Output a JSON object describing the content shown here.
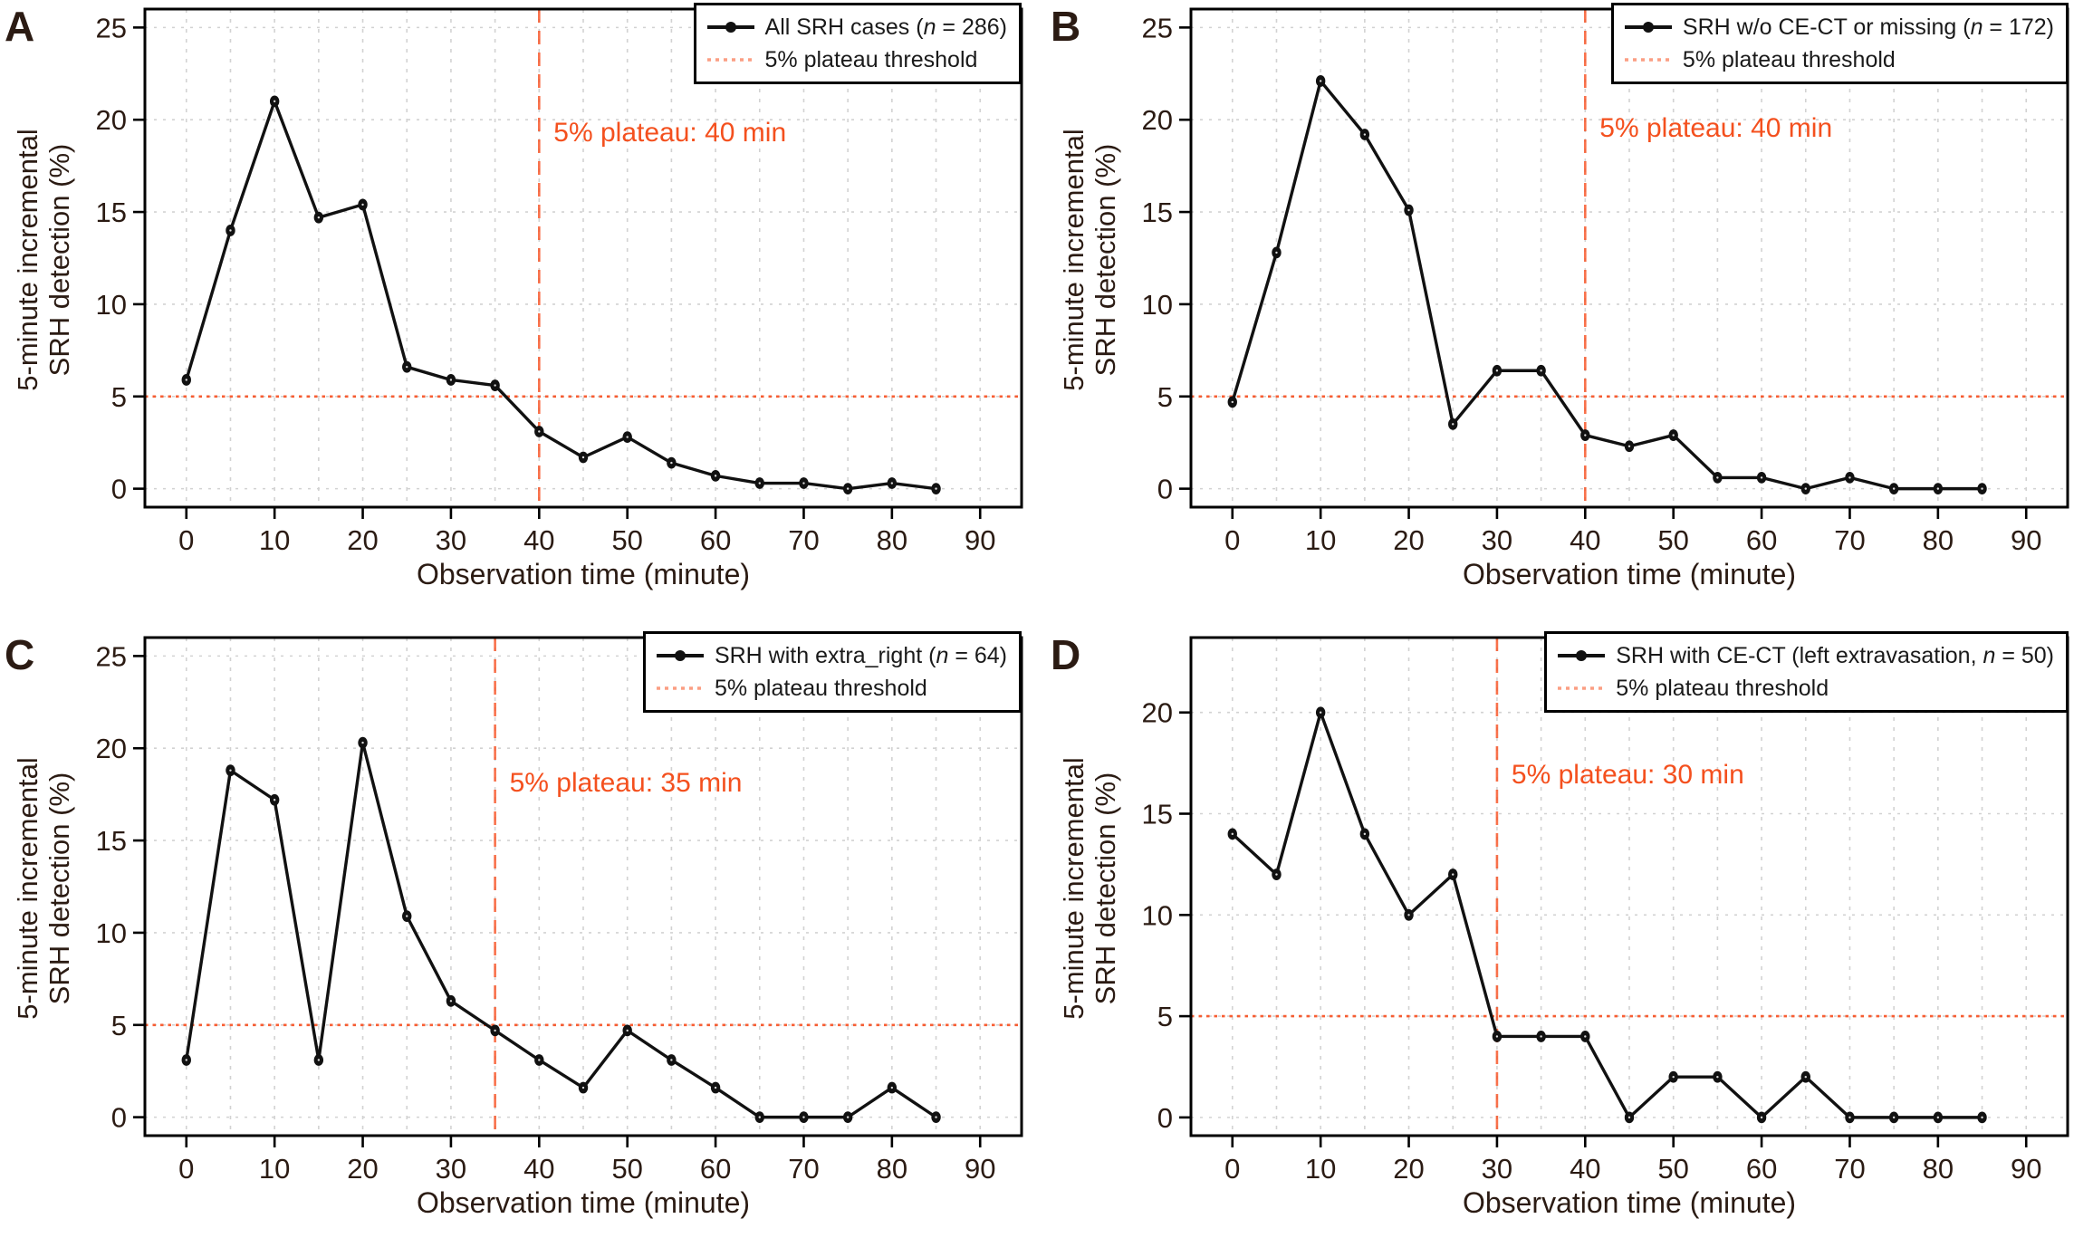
{
  "shared": {
    "ylabel_line1": "5-minute incremental",
    "ylabel_line2": "SRH detection (%)",
    "xlabel": "Observation time (minute)",
    "threshold_label": "5% plateau threshold",
    "colors": {
      "accent_orange": "#F74E1E",
      "annotation_orange": "#F4501E",
      "series_black": "#111111",
      "grid_gray": "#D2D2D2",
      "text_dark": "#2B1B13"
    }
  },
  "chart_data": [
    {
      "type": "line",
      "panel": "A",
      "title": "",
      "xlabel": "Observation time (minute)",
      "ylabel": "5-minute incremental SRH detection (%)",
      "x": [
        0,
        5,
        10,
        15,
        20,
        25,
        30,
        35,
        40,
        45,
        50,
        55,
        60,
        65,
        70,
        75,
        80,
        85
      ],
      "values": [
        5.9,
        14.0,
        21.0,
        14.7,
        15.4,
        6.6,
        5.9,
        5.6,
        3.1,
        1.7,
        2.8,
        1.4,
        0.7,
        0.3,
        0.3,
        0.0,
        0.3,
        0.0
      ],
      "series_label": {
        "pre": "All SRH cases (",
        "n": "n",
        "post": " = 286)"
      },
      "annotation": "5% plateau: 40 min",
      "plateau_min": 40,
      "threshold_pct": 5,
      "annotation_y": 19.2,
      "x_ticks": [
        0,
        10,
        20,
        30,
        40,
        50,
        60,
        70,
        80,
        90
      ],
      "y_ticks": [
        0,
        5,
        10,
        15,
        20,
        25
      ],
      "xlim": [
        -4.7,
        94.7
      ],
      "ylim": [
        -1.0,
        26.0
      ],
      "grid": true,
      "legend_position": "top-right"
    },
    {
      "type": "line",
      "panel": "B",
      "title": "",
      "xlabel": "Observation time (minute)",
      "ylabel": "5-minute incremental SRH detection (%)",
      "x": [
        0,
        5,
        10,
        15,
        20,
        25,
        30,
        35,
        40,
        45,
        50,
        55,
        60,
        65,
        70,
        75,
        80,
        85
      ],
      "values": [
        4.7,
        12.8,
        22.1,
        19.2,
        15.1,
        3.5,
        6.4,
        6.4,
        2.9,
        2.3,
        2.9,
        0.6,
        0.6,
        0.0,
        0.6,
        0.0,
        0.0,
        0.0
      ],
      "series_label": {
        "pre": "SRH w/o CE-CT or missing (",
        "n": "n",
        "post": " = 172)"
      },
      "annotation": "5% plateau: 40 min",
      "plateau_min": 40,
      "threshold_pct": 5,
      "annotation_y": 19.4,
      "x_ticks": [
        0,
        10,
        20,
        30,
        40,
        50,
        60,
        70,
        80,
        90
      ],
      "y_ticks": [
        0,
        5,
        10,
        15,
        20,
        25
      ],
      "xlim": [
        -4.7,
        94.7
      ],
      "ylim": [
        -1.0,
        26.0
      ],
      "grid": true,
      "legend_position": "top-right"
    },
    {
      "type": "line",
      "panel": "C",
      "title": "",
      "xlabel": "Observation time (minute)",
      "ylabel": "5-minute incremental SRH detection (%)",
      "x": [
        0,
        5,
        10,
        15,
        20,
        25,
        30,
        35,
        40,
        45,
        50,
        55,
        60,
        65,
        70,
        75,
        80,
        85
      ],
      "values": [
        3.1,
        18.8,
        17.2,
        3.1,
        20.3,
        10.9,
        6.3,
        4.7,
        3.1,
        1.6,
        4.7,
        3.1,
        1.6,
        0.0,
        0.0,
        0.0,
        1.6,
        0.0
      ],
      "series_label": {
        "pre": "SRH with extra_right (",
        "n": "n",
        "post": " = 64)"
      },
      "annotation": "5% plateau: 35 min",
      "plateau_min": 35,
      "threshold_pct": 5,
      "annotation_y": 18.0,
      "x_ticks": [
        0,
        10,
        20,
        30,
        40,
        50,
        60,
        70,
        80,
        90
      ],
      "y_ticks": [
        0,
        5,
        10,
        15,
        20,
        25
      ],
      "xlim": [
        -4.7,
        94.7
      ],
      "ylim": [
        -1.0,
        26.0
      ],
      "grid": true,
      "legend_position": "top-right"
    },
    {
      "type": "line",
      "panel": "D",
      "title": "",
      "xlabel": "Observation time (minute)",
      "ylabel": "5-minute incremental SRH detection (%)",
      "x": [
        0,
        5,
        10,
        15,
        20,
        25,
        30,
        35,
        40,
        45,
        50,
        55,
        60,
        65,
        70,
        75,
        80,
        85
      ],
      "values": [
        14,
        12,
        20,
        14,
        10,
        12,
        4,
        4,
        4,
        0,
        2,
        2,
        0,
        2,
        0,
        0,
        0,
        0
      ],
      "series_label": {
        "pre": "SRH with CE-CT (left extravasation, ",
        "n": "n",
        "post": " = 50)"
      },
      "annotation": "5% plateau: 30 min",
      "plateau_min": 30,
      "threshold_pct": 5,
      "annotation_y": 16.8,
      "x_ticks": [
        0,
        10,
        20,
        30,
        40,
        50,
        60,
        70,
        80,
        90
      ],
      "y_ticks": [
        0,
        5,
        10,
        15,
        20
      ],
      "xlim": [
        -4.7,
        94.7
      ],
      "ylim": [
        -0.9,
        23.7
      ],
      "grid": true,
      "legend_position": "top-right"
    }
  ]
}
